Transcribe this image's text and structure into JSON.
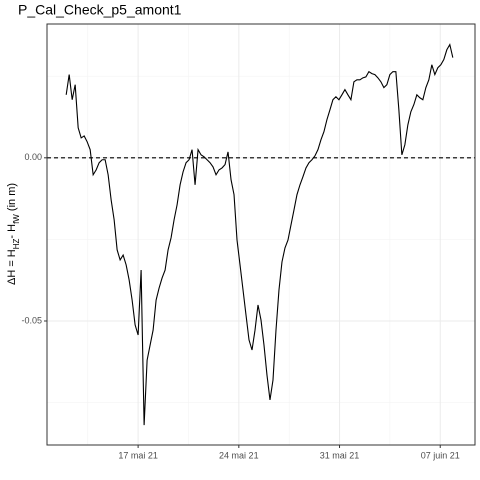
{
  "chart_data": {
    "type": "line",
    "title": "P_Cal_Check_p5_amont1",
    "y_label": [
      "ΔH = H",
      "HZ",
      "- H",
      "fW",
      " (in m)"
    ],
    "x": [
      "2021-05-12 00:00",
      "2021-05-12 05:00",
      "2021-05-12 10:00",
      "2021-05-12 15:00",
      "2021-05-12 20:00",
      "2021-05-13 01:00",
      "2021-05-13 06:00",
      "2021-05-13 11:00",
      "2021-05-13 16:00",
      "2021-05-13 21:00",
      "2021-05-14 02:00",
      "2021-05-14 07:00",
      "2021-05-14 12:00",
      "2021-05-14 17:00",
      "2021-05-14 22:00",
      "2021-05-15 03:00",
      "2021-05-15 08:00",
      "2021-05-15 13:00",
      "2021-05-15 18:00",
      "2021-05-15 23:00",
      "2021-05-16 04:00",
      "2021-05-16 09:00",
      "2021-05-16 14:00",
      "2021-05-16 19:00",
      "2021-05-17 00:00",
      "2021-05-17 05:00",
      "2021-05-17 10:00",
      "2021-05-17 15:00",
      "2021-05-17 20:00",
      "2021-05-18 01:00",
      "2021-05-18 06:00",
      "2021-05-18 11:00",
      "2021-05-18 16:00",
      "2021-05-18 21:00",
      "2021-05-19 02:00",
      "2021-05-19 07:00",
      "2021-05-19 12:00",
      "2021-05-19 17:00",
      "2021-05-19 22:00",
      "2021-05-20 03:00",
      "2021-05-20 08:00",
      "2021-05-20 13:00",
      "2021-05-20 18:00",
      "2021-05-20 23:00",
      "2021-05-21 04:00",
      "2021-05-21 09:00",
      "2021-05-21 14:00",
      "2021-05-21 19:00",
      "2021-05-22 00:00",
      "2021-05-22 05:00",
      "2021-05-22 10:00",
      "2021-05-22 15:00",
      "2021-05-22 20:00",
      "2021-05-23 01:00",
      "2021-05-23 06:00",
      "2021-05-23 11:00",
      "2021-05-23 16:00",
      "2021-05-23 21:00",
      "2021-05-24 02:00",
      "2021-05-24 07:00",
      "2021-05-24 12:00",
      "2021-05-24 17:00",
      "2021-05-24 22:00",
      "2021-05-25 03:00",
      "2021-05-25 08:00",
      "2021-05-25 13:00",
      "2021-05-25 18:00",
      "2021-05-25 23:00",
      "2021-05-26 04:00",
      "2021-05-26 09:00",
      "2021-05-26 14:00",
      "2021-05-26 19:00",
      "2021-05-27 00:00",
      "2021-05-27 05:00",
      "2021-05-27 10:00",
      "2021-05-27 15:00",
      "2021-05-27 20:00",
      "2021-05-28 01:00",
      "2021-05-28 06:00",
      "2021-05-28 11:00",
      "2021-05-28 16:00",
      "2021-05-28 21:00",
      "2021-05-29 02:00",
      "2021-05-29 07:00",
      "2021-05-29 12:00",
      "2021-05-29 17:00",
      "2021-05-29 22:00",
      "2021-05-30 03:00",
      "2021-05-30 08:00",
      "2021-05-30 13:00",
      "2021-05-30 18:00",
      "2021-05-30 23:00",
      "2021-05-31 04:00",
      "2021-05-31 09:00",
      "2021-05-31 14:00",
      "2021-05-31 19:00",
      "2021-06-01 00:00",
      "2021-06-01 05:00",
      "2021-06-01 10:00",
      "2021-06-01 15:00",
      "2021-06-01 20:00",
      "2021-06-02 01:00",
      "2021-06-02 06:00",
      "2021-06-02 11:00",
      "2021-06-02 16:00",
      "2021-06-02 21:00",
      "2021-06-03 02:00",
      "2021-06-03 07:00",
      "2021-06-03 12:00",
      "2021-06-03 17:00",
      "2021-06-03 22:00",
      "2021-06-04 03:00",
      "2021-06-04 08:00",
      "2021-06-04 13:00",
      "2021-06-04 18:00",
      "2021-06-04 23:00",
      "2021-06-05 04:00",
      "2021-06-05 09:00",
      "2021-06-05 14:00",
      "2021-06-05 19:00",
      "2021-06-06 00:00",
      "2021-06-06 05:00",
      "2021-06-06 10:00",
      "2021-06-06 15:00",
      "2021-06-06 20:00",
      "2021-06-07 01:00",
      "2021-06-07 06:00",
      "2021-06-07 11:00",
      "2021-06-07 16:00",
      "2021-06-07 21:00"
    ],
    "series": [
      {
        "color": "#000000",
        "values": [
          0.0193,
          0.0255,
          0.0178,
          0.0224,
          0.0092,
          0.0061,
          0.0067,
          0.0049,
          0.0025,
          -0.0052,
          -0.0037,
          -0.0015,
          -0.0006,
          -0.0006,
          -0.0052,
          -0.0129,
          -0.019,
          -0.0282,
          -0.0313,
          -0.0298,
          -0.0328,
          -0.0374,
          -0.0436,
          -0.0512,
          -0.0543,
          -0.0344,
          -0.0819,
          -0.062,
          -0.0574,
          -0.0528,
          -0.0436,
          -0.0399,
          -0.0368,
          -0.0344,
          -0.0282,
          -0.0245,
          -0.019,
          -0.0144,
          -0.0083,
          -0.0043,
          -0.0015,
          -0.0006,
          0.0025,
          -0.0083,
          0.0025,
          0.0009,
          0.0003,
          -0.0006,
          -0.0015,
          -0.0028,
          -0.0052,
          -0.0037,
          -0.0031,
          -0.0021,
          0.0018,
          -0.0067,
          -0.0113,
          -0.0252,
          -0.0328,
          -0.0405,
          -0.0482,
          -0.0558,
          -0.0589,
          -0.0528,
          -0.0451,
          -0.0497,
          -0.0574,
          -0.0666,
          -0.0742,
          -0.0681,
          -0.0528,
          -0.0405,
          -0.0319,
          -0.0276,
          -0.0252,
          -0.0206,
          -0.016,
          -0.0113,
          -0.0083,
          -0.0058,
          -0.0031,
          -0.0015,
          -0.0006,
          0.0006,
          0.0025,
          0.0055,
          0.008,
          0.0117,
          0.0147,
          0.0178,
          0.0187,
          0.0178,
          0.0193,
          0.0209,
          0.0193,
          0.0178,
          0.0233,
          0.0239,
          0.0239,
          0.0245,
          0.0248,
          0.0264,
          0.0258,
          0.0255,
          0.0245,
          0.0233,
          0.0215,
          0.0224,
          0.0255,
          0.0264,
          0.0264,
          0.0147,
          0.0009,
          0.004,
          0.0101,
          0.0141,
          0.0163,
          0.0193,
          0.0184,
          0.0178,
          0.0215,
          0.0239,
          0.0285,
          0.0255,
          0.0276,
          0.0285,
          0.0301,
          0.0331,
          0.0347,
          0.0307
        ]
      }
    ],
    "xlim": [
      "2021-05-10 16:00",
      "2021-06-09 10:00"
    ],
    "xticks": [
      {
        "value": "2021-05-17 00:00",
        "label": "17 mai 21"
      },
      {
        "value": "2021-05-24 00:00",
        "label": "24 mai 21"
      },
      {
        "value": "2021-05-31 00:00",
        "label": "31 mai 21"
      },
      {
        "value": "2021-06-07 00:00",
        "label": "07 juin 21"
      }
    ],
    "ylim": [
      -0.088,
      0.041
    ],
    "yticks": [
      -0.05,
      {
        "value": 0,
        "label": "0.00"
      }
    ],
    "hline": 0,
    "grid": true
  }
}
